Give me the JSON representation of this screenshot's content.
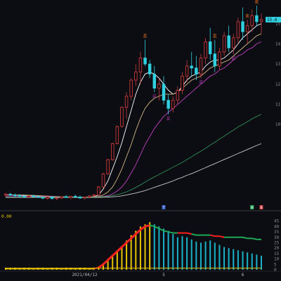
{
  "panel": {
    "info_value": "0.00"
  },
  "price_axis_labels": [
    "15",
    "14",
    "13",
    "12",
    "11",
    "10"
  ],
  "indicator_axis_labels": [
    "45",
    "40",
    "35",
    "30",
    "25",
    "20",
    "15",
    "10",
    "5",
    "0"
  ],
  "x_axis": {
    "labels": [
      "2021/04/12",
      "5",
      "6"
    ],
    "cursor_date": "2021/04/12"
  },
  "price_badge": "15.6",
  "event_markers": [
    "T",
    "W",
    "B"
  ],
  "signal_markers": [
    "买",
    "卖"
  ],
  "chart_data": [
    {
      "type": "candlestick",
      "title": "",
      "ylim": [
        6.0,
        16.0
      ],
      "candles": [
        [
          6.5,
          6.6,
          6.4,
          6.55
        ],
        [
          6.55,
          6.6,
          6.45,
          6.5
        ],
        [
          6.5,
          6.58,
          6.42,
          6.48
        ],
        [
          6.48,
          6.55,
          6.38,
          6.45
        ],
        [
          6.45,
          6.5,
          6.35,
          6.4
        ],
        [
          6.4,
          6.48,
          6.35,
          6.46
        ],
        [
          6.46,
          6.52,
          6.4,
          6.42
        ],
        [
          6.42,
          6.48,
          6.36,
          6.38
        ],
        [
          6.38,
          6.45,
          6.3,
          6.34
        ],
        [
          6.34,
          6.42,
          6.28,
          6.4
        ],
        [
          6.4,
          6.45,
          6.3,
          6.32
        ],
        [
          6.32,
          6.4,
          6.25,
          6.36
        ],
        [
          6.36,
          6.45,
          6.3,
          6.42
        ],
        [
          6.42,
          6.5,
          6.35,
          6.38
        ],
        [
          6.38,
          6.46,
          6.3,
          6.44
        ],
        [
          6.44,
          6.52,
          6.38,
          6.4
        ],
        [
          6.4,
          6.48,
          6.32,
          6.35
        ],
        [
          6.35,
          6.42,
          6.28,
          6.4
        ],
        [
          6.4,
          6.48,
          6.34,
          6.46
        ],
        [
          6.46,
          6.55,
          6.4,
          6.5
        ],
        [
          6.5,
          6.95,
          6.45,
          6.9
        ],
        [
          6.9,
          7.6,
          6.85,
          7.55
        ],
        [
          7.55,
          8.3,
          7.5,
          8.25
        ],
        [
          8.25,
          9.1,
          8.2,
          9.05
        ],
        [
          9.05,
          9.95,
          9.0,
          9.9
        ],
        [
          9.9,
          10.9,
          9.85,
          10.85
        ],
        [
          10.85,
          11.6,
          10.3,
          11.4
        ],
        [
          11.4,
          12.3,
          11.2,
          12.2
        ],
        [
          12.2,
          13.0,
          11.9,
          12.6
        ],
        [
          12.6,
          13.6,
          12.0,
          13.3
        ],
        [
          13.3,
          14.2,
          12.9,
          13.0
        ],
        [
          13.0,
          13.2,
          12.3,
          12.5
        ],
        [
          12.5,
          12.9,
          11.6,
          11.8
        ],
        [
          11.8,
          12.3,
          11.2,
          12.0
        ],
        [
          12.0,
          12.4,
          11.0,
          11.2
        ],
        [
          11.2,
          11.5,
          10.5,
          10.8
        ],
        [
          10.8,
          11.4,
          10.6,
          11.2
        ],
        [
          11.2,
          11.9,
          11.0,
          11.7
        ],
        [
          11.7,
          12.6,
          11.5,
          12.4
        ],
        [
          12.4,
          13.2,
          12.1,
          12.9
        ],
        [
          12.9,
          13.6,
          12.4,
          12.8
        ],
        [
          12.8,
          13.4,
          12.2,
          12.5
        ],
        [
          12.5,
          13.5,
          12.3,
          13.3
        ],
        [
          13.3,
          14.3,
          13.0,
          14.1
        ],
        [
          14.1,
          14.8,
          13.2,
          13.5
        ],
        [
          13.5,
          14.2,
          12.6,
          12.9
        ],
        [
          12.9,
          13.8,
          12.7,
          13.6
        ],
        [
          13.6,
          14.6,
          13.4,
          14.4
        ],
        [
          14.4,
          14.9,
          13.6,
          13.8
        ],
        [
          13.8,
          14.5,
          13.5,
          14.3
        ],
        [
          14.3,
          15.3,
          14.0,
          15.1
        ],
        [
          15.1,
          15.8,
          14.2,
          14.6
        ],
        [
          14.6,
          15.2,
          14.0,
          14.9
        ],
        [
          14.9,
          15.7,
          14.6,
          15.4
        ],
        [
          15.4,
          15.9,
          14.9,
          15.1
        ],
        [
          15.1,
          15.5,
          14.5,
          15.2
        ]
      ],
      "moving_averages": [
        {
          "name": "",
          "color": "#ffffff",
          "values": [
            6.5,
            6.5,
            6.5,
            6.49,
            6.48,
            6.47,
            6.46,
            6.45,
            6.44,
            6.43,
            6.42,
            6.4,
            6.39,
            6.39,
            6.4,
            6.4,
            6.39,
            6.39,
            6.4,
            6.42,
            6.5,
            6.8,
            7.2,
            7.8,
            8.4,
            9.1,
            9.9,
            10.7,
            11.5,
            12.1,
            12.5,
            12.6,
            12.5,
            12.3,
            12.0,
            11.7,
            11.5,
            11.6,
            11.9,
            12.2,
            12.4,
            12.5,
            12.6,
            12.9,
            13.1,
            13.2,
            13.2,
            13.3,
            13.5,
            13.7,
            14.0,
            14.3,
            14.5,
            14.7,
            14.9,
            15.0
          ]
        },
        {
          "name": "",
          "color": "#d4b483",
          "values": [
            6.5,
            6.5,
            6.5,
            6.5,
            6.5,
            6.49,
            6.48,
            6.47,
            6.46,
            6.45,
            6.44,
            6.43,
            6.42,
            6.41,
            6.41,
            6.4,
            6.4,
            6.4,
            6.4,
            6.41,
            6.43,
            6.5,
            6.65,
            6.9,
            7.3,
            7.8,
            8.4,
            9.0,
            9.7,
            10.3,
            10.8,
            11.1,
            11.3,
            11.4,
            11.5,
            11.5,
            11.5,
            11.6,
            11.8,
            12.0,
            12.2,
            12.3,
            12.4,
            12.6,
            12.8,
            12.9,
            13.0,
            13.1,
            13.2,
            13.4,
            13.6,
            13.8,
            14.0,
            14.2,
            14.4,
            14.5
          ]
        },
        {
          "name": "",
          "color": "#c040c0",
          "values": [
            6.45,
            6.45,
            6.45,
            6.45,
            6.45,
            6.44,
            6.44,
            6.43,
            6.43,
            6.42,
            6.42,
            6.41,
            6.41,
            6.4,
            6.4,
            6.4,
            6.4,
            6.4,
            6.4,
            6.4,
            6.41,
            6.43,
            6.47,
            6.55,
            6.7,
            6.9,
            7.2,
            7.6,
            8.0,
            8.5,
            9.0,
            9.4,
            9.8,
            10.1,
            10.4,
            10.6,
            10.8,
            11.0,
            11.2,
            11.4,
            11.6,
            11.8,
            12.0,
            12.2,
            12.4,
            12.5,
            12.7,
            12.8,
            13.0,
            13.2,
            13.4,
            13.5,
            13.7,
            13.8,
            14.0,
            14.1
          ]
        },
        {
          "name": "",
          "color": "#2e8b57",
          "values": [
            6.4,
            6.4,
            6.4,
            6.4,
            6.4,
            6.4,
            6.4,
            6.4,
            6.4,
            6.4,
            6.4,
            6.4,
            6.4,
            6.4,
            6.4,
            6.4,
            6.4,
            6.4,
            6.4,
            6.4,
            6.41,
            6.42,
            6.44,
            6.47,
            6.52,
            6.58,
            6.66,
            6.76,
            6.88,
            7.0,
            7.14,
            7.28,
            7.4,
            7.52,
            7.64,
            7.76,
            7.88,
            8.0,
            8.12,
            8.26,
            8.4,
            8.54,
            8.68,
            8.82,
            8.98,
            9.12,
            9.28,
            9.42,
            9.58,
            9.72,
            9.88,
            10.0,
            10.14,
            10.28,
            10.4,
            10.5
          ]
        },
        {
          "name": "",
          "color": "#c8c8c8",
          "values": [
            6.38,
            6.38,
            6.38,
            6.38,
            6.38,
            6.38,
            6.38,
            6.38,
            6.38,
            6.38,
            6.38,
            6.38,
            6.38,
            6.38,
            6.38,
            6.38,
            6.38,
            6.38,
            6.38,
            6.38,
            6.38,
            6.39,
            6.4,
            6.41,
            6.43,
            6.46,
            6.5,
            6.55,
            6.6,
            6.66,
            6.72,
            6.8,
            6.88,
            6.96,
            7.04,
            7.12,
            7.2,
            7.3,
            7.38,
            7.48,
            7.56,
            7.66,
            7.76,
            7.86,
            7.96,
            8.06,
            8.16,
            8.26,
            8.36,
            8.46,
            8.56,
            8.66,
            8.76,
            8.86,
            8.96,
            9.05
          ]
        }
      ]
    },
    {
      "type": "bar",
      "title": "",
      "ylim": [
        0,
        48
      ],
      "values": [
        2,
        2,
        2,
        1,
        2,
        2,
        1,
        2,
        2,
        1,
        2,
        2,
        1,
        2,
        2,
        1,
        2,
        2,
        1,
        2,
        3,
        6,
        10,
        14,
        18,
        22,
        27,
        32,
        36,
        40,
        42,
        44,
        42,
        40,
        38,
        36,
        33,
        30,
        31,
        30,
        28,
        26,
        25,
        26,
        27,
        25,
        23,
        21,
        20,
        19,
        18,
        17,
        16,
        15,
        14,
        13
      ],
      "bar_colors": [
        "#e6c200",
        "#19b0c8"
      ],
      "signal_line": {
        "colors": [
          "#ff2020",
          "#1faa55",
          "#e6c200"
        ],
        "values": [
          1,
          1,
          1,
          1,
          1,
          1,
          1,
          1,
          1,
          1,
          1,
          1,
          1,
          1,
          1,
          1,
          1,
          1,
          1,
          1,
          2,
          5,
          9,
          13,
          17,
          21,
          25,
          29,
          33,
          37,
          40,
          41,
          40,
          38,
          36,
          35,
          34,
          34,
          34,
          34,
          33,
          32,
          32,
          32,
          32,
          31,
          31,
          30,
          30,
          30,
          30,
          30,
          29,
          29,
          28,
          28
        ]
      }
    }
  ]
}
